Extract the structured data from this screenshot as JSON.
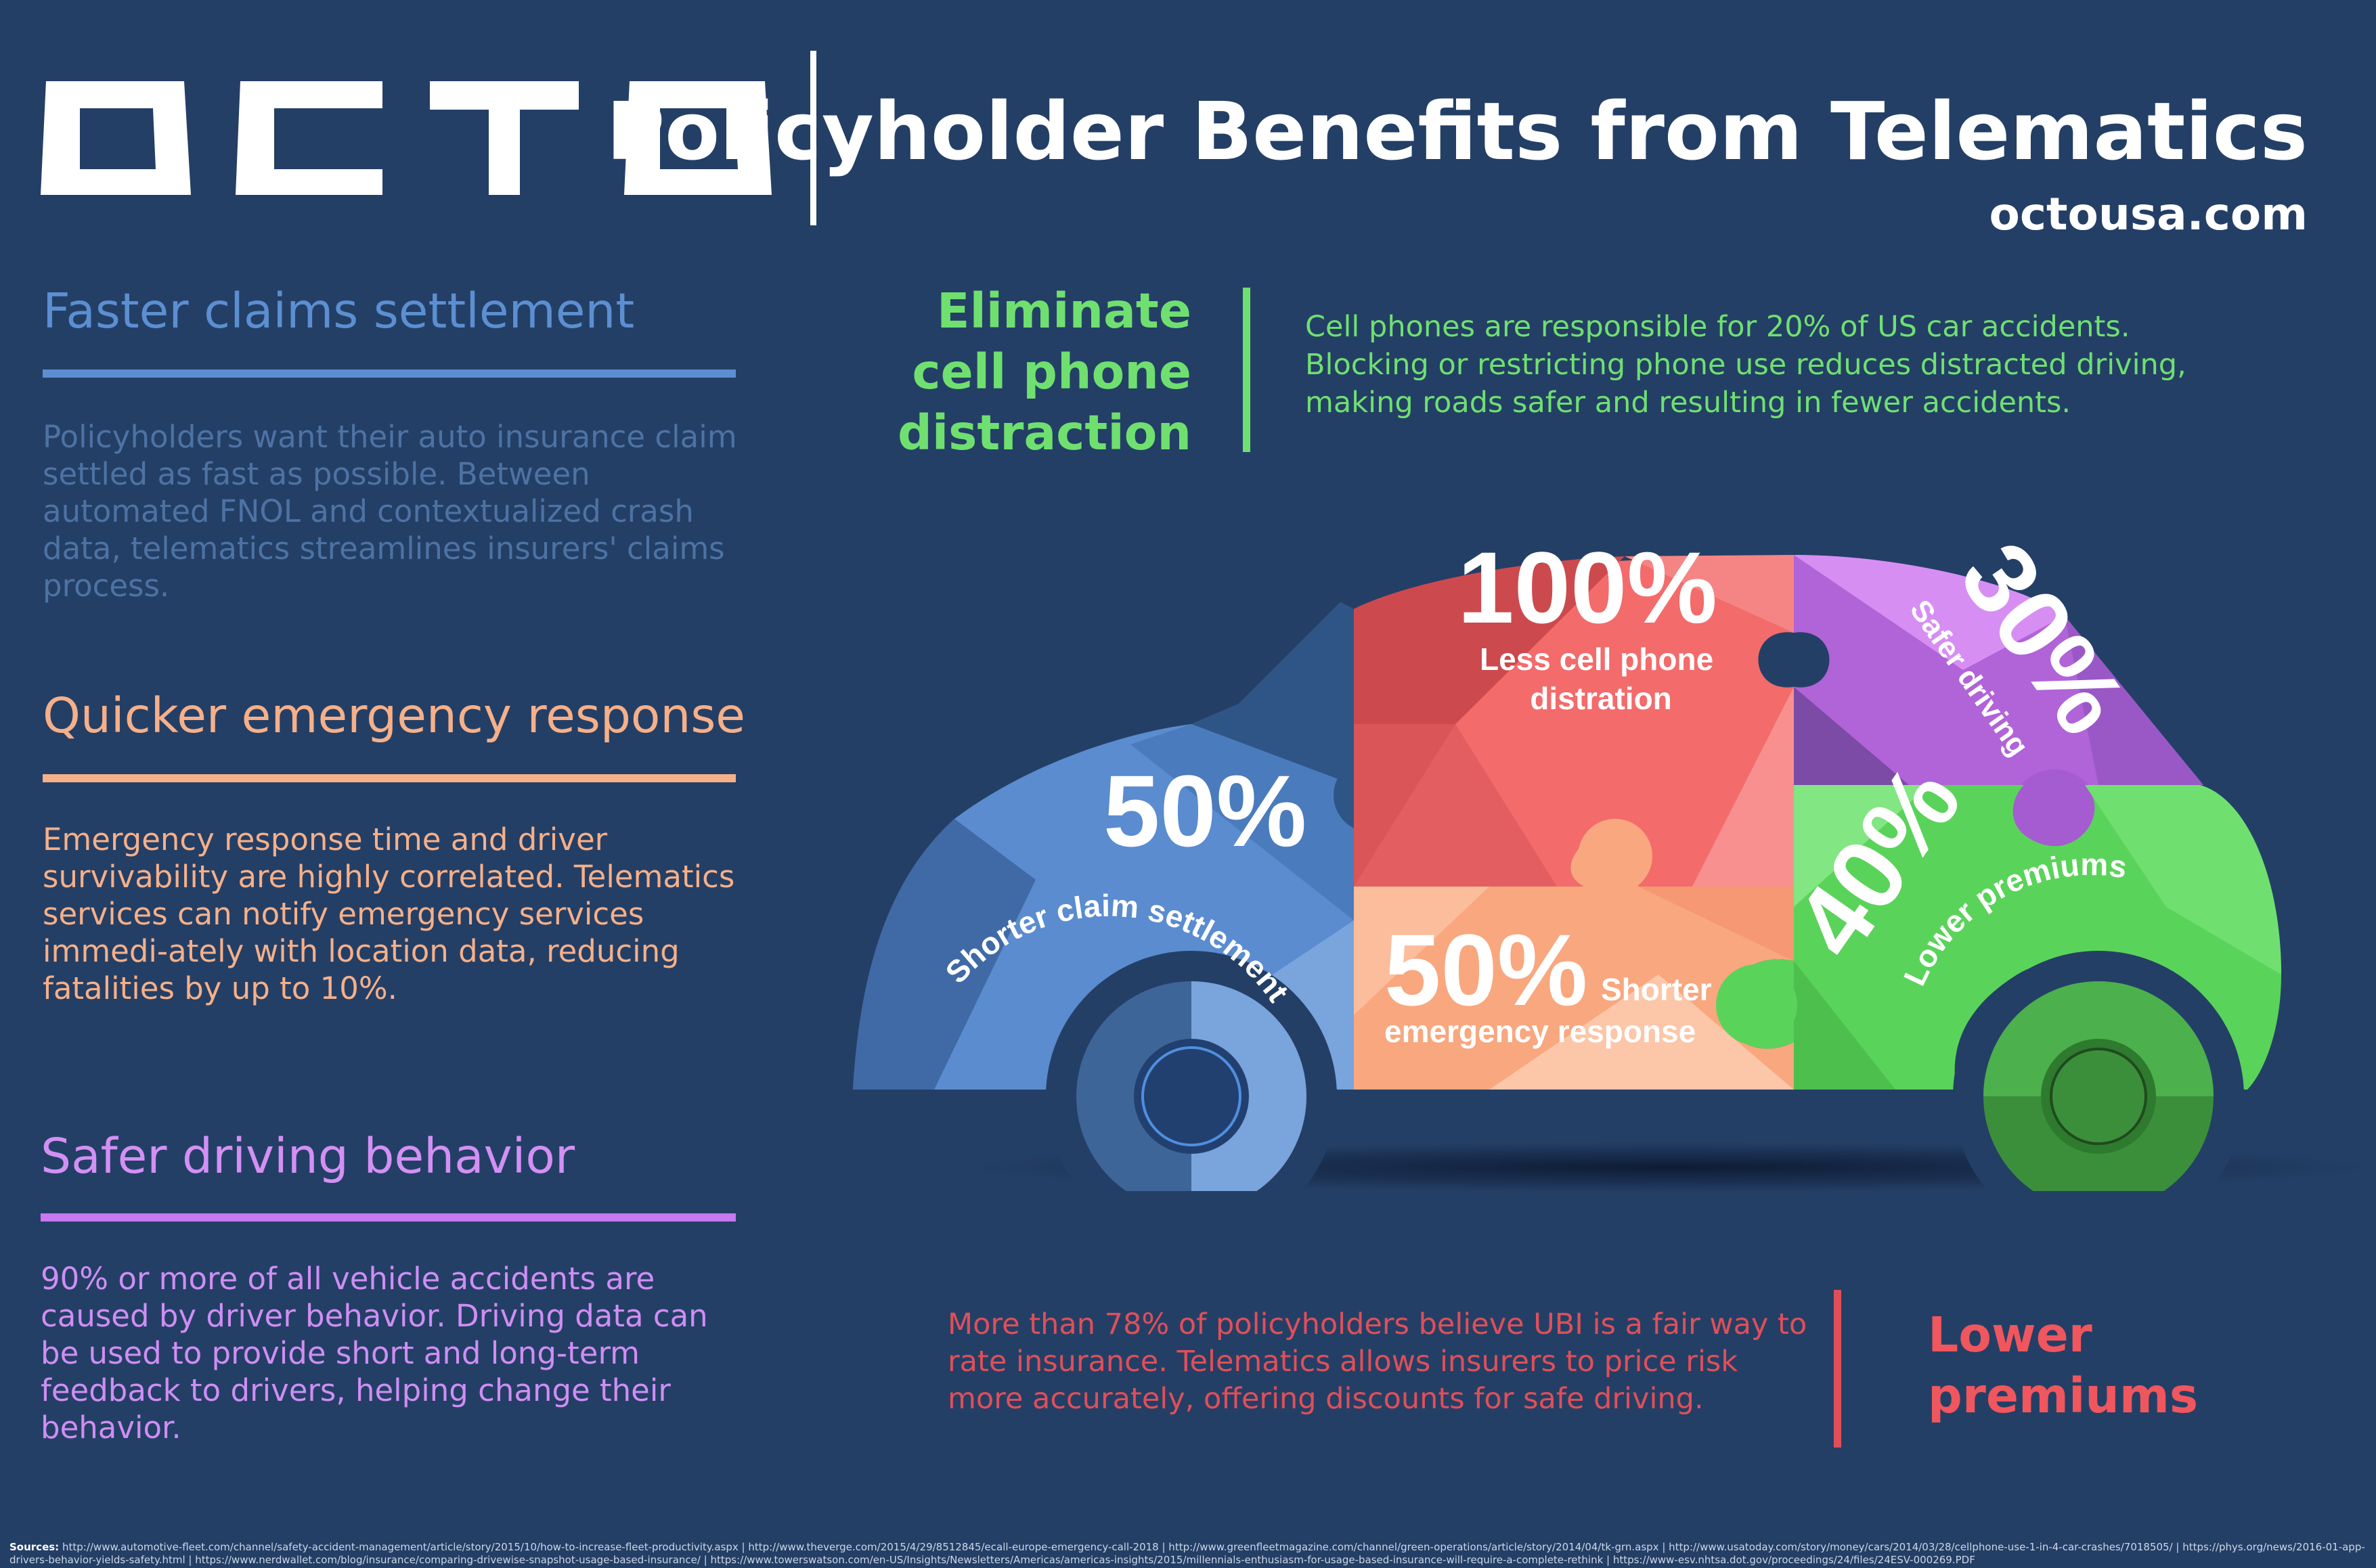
{
  "header": {
    "logo_text": "OCTO",
    "title": "Policyholder Benefits from Telematics",
    "url": "octousa.com"
  },
  "sections": [
    {
      "title": "Faster claims settlement",
      "body": "Policyholders want their auto insurance claim settled as fast as possible. Between automated FNOL and contextualized crash data, telematics streamlines insurers' claims process."
    },
    {
      "title": "Quicker emergency response",
      "body": "Emergency response time and driver survivability are highly correlated. Telematics services can notify emergency services immedi-ately with location data, reducing fatalities by up to 10%."
    },
    {
      "title": "Safer driving behavior",
      "body": "90% or more of all vehicle accidents are caused by driver behavior. Driving data can be used to provide short and long-term feedback to drivers, helping change their behavior."
    }
  ],
  "callouts": {
    "distraction": {
      "title_lines": [
        "Eliminate",
        "cell phone",
        "distraction"
      ],
      "body": "Cell phones are responsible for 20% of US car accidents. Blocking or restricting phone use reduces distracted driving, making roads safer and resulting in fewer accidents."
    },
    "premiums": {
      "title_lines": [
        "Lower",
        "premiums"
      ],
      "body": "More than 78% of policyholders believe UBI is a fair way to rate insurance. Telematics allows insurers to price risk more accurately, offering discounts for safe driving."
    }
  },
  "car_stats": {
    "cell_phone": {
      "value": "100%",
      "label_lines": [
        "Less cell phone",
        "distration"
      ]
    },
    "safer_driving": {
      "value": "30%",
      "label": "Safer driving"
    },
    "claims": {
      "value": "50%",
      "label": "Shorter claim settlement time"
    },
    "emergency": {
      "value": "50%",
      "label_inline": "Shorter",
      "label": "emergency response"
    },
    "premiums": {
      "value": "40%",
      "label": "Lower premiums"
    }
  },
  "colors": {
    "background": "#243f66",
    "blue": "#5b8fd1",
    "peach": "#f6b089",
    "purple": "#c878f0",
    "green": "#6fe070",
    "red": "#f0565d"
  },
  "sources": {
    "label": "Sources:",
    "text": "http://www.automotive-fleet.com/channel/safety-accident-management/article/story/2015/10/how-to-increase-fleet-productivity.aspx | http://www.theverge.com/2015/4/29/8512845/ecall-europe-emergency-call-2018 | http://www.greenfleetmagazine.com/channel/green-operations/article/story/2014/04/tk-grn.aspx | http://www.usatoday.com/story/money/cars/2014/03/28/cellphone-use-1-in-4-car-crashes/7018505/ | https://phys.org/news/2016-01-app-drivers-behavior-yields-safety.html | https://www.nerdwallet.com/blog/insurance/comparing-drivewise-snapshot-usage-based-insurance/ | https://www.towerswatson.com/en-US/Insights/Newsletters/Americas/americas-insights/2015/millennials-enthusiasm-for-usage-based-insurance-will-require-a-complete-rethink | https://www-esv.nhtsa.dot.gov/proceedings/24/files/24ESV-000269.PDF"
  }
}
